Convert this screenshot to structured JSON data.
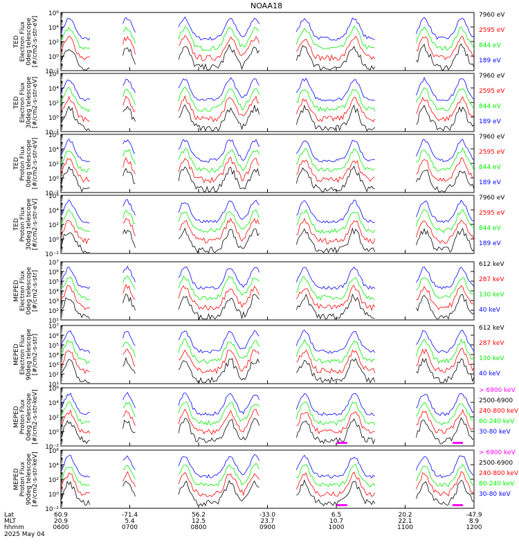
{
  "title": "NOAA18",
  "date_label": "2025 May 04",
  "colors": {
    "blue": "#0000ff",
    "red": "#ff0000",
    "green": "#00ee00",
    "black": "#000000",
    "magenta": "#ff00ff"
  },
  "footer": {
    "row_labels": [
      "Lat",
      "MLT",
      "hhmm"
    ],
    "columns": [
      {
        "lat": "60.9",
        "mlt": "20.9",
        "hhmm": "0600"
      },
      {
        "lat": "-71.4",
        "mlt": "5.4",
        "hhmm": "0700"
      },
      {
        "lat": "56.2",
        "mlt": "12.5",
        "hhmm": "0800"
      },
      {
        "lat": "-33.0",
        "mlt": "23.7",
        "hhmm": "0900"
      },
      {
        "lat": "6.5",
        "mlt": "10.7",
        "hhmm": "1000"
      },
      {
        "lat": "20.2",
        "mlt": "22.1",
        "hhmm": "1100"
      },
      {
        "lat": "-47.9",
        "mlt": "8.9",
        "hhmm": "1200"
      }
    ]
  },
  "chart_data": [
    {
      "type": "line",
      "ylabel": [
        "TED",
        "Electron Flux",
        "0deg telescope",
        "[#/cm2-s-str-eV]"
      ],
      "ylog": true,
      "ylim_exp": [
        -2,
        6
      ],
      "ytick_exps": [
        -2,
        0,
        2,
        4,
        6
      ],
      "ytick_labels": [
        "10⁻²",
        "10⁰",
        "10²",
        "10⁴",
        "10⁶"
      ],
      "series": [
        {
          "name": "7960 eV",
          "color": "#000000"
        },
        {
          "name": "2595 eV",
          "color": "#ff0000"
        },
        {
          "name": "844 eV",
          "color": "#00ee00"
        },
        {
          "name": "189 eV",
          "color": "#0000ff"
        }
      ]
    },
    {
      "type": "line",
      "ylabel": [
        "TED",
        "Electron Flux",
        "30deg telescope",
        "[#/cm2-s-str-eV]"
      ],
      "ylog": true,
      "ylim_exp": [
        -2,
        6
      ],
      "ytick_exps": [
        -2,
        0,
        2,
        4,
        6
      ],
      "ytick_labels": [
        "10⁻²",
        "10⁰",
        "10²",
        "10⁴",
        "10⁶"
      ],
      "series": [
        {
          "name": "7960 eV",
          "color": "#000000"
        },
        {
          "name": "2595 eV",
          "color": "#ff0000"
        },
        {
          "name": "844 eV",
          "color": "#00ee00"
        },
        {
          "name": "189 eV",
          "color": "#0000ff"
        }
      ]
    },
    {
      "type": "line",
      "ylabel": [
        "TED",
        "Proton Flux",
        "0deg telescope",
        "[#/cm2-s-str-eV]"
      ],
      "ylog": true,
      "ylim_exp": [
        -2,
        6
      ],
      "ytick_exps": [
        -2,
        0,
        2,
        4,
        6
      ],
      "ytick_labels": [
        "10⁻²",
        "10⁰",
        "10²",
        "10⁴",
        "10⁶"
      ],
      "series": [
        {
          "name": "7960 eV",
          "color": "#000000"
        },
        {
          "name": "2595 eV",
          "color": "#ff0000"
        },
        {
          "name": "844 eV",
          "color": "#00ee00"
        },
        {
          "name": "189 eV",
          "color": "#0000ff"
        }
      ]
    },
    {
      "type": "line",
      "ylabel": [
        "TED",
        "Proton Flux",
        "30deg telescope",
        "[#/cm2-s-str-eV]"
      ],
      "ylog": true,
      "ylim_exp": [
        -2,
        6
      ],
      "ytick_exps": [
        -2,
        0,
        2,
        4,
        6
      ],
      "ytick_labels": [
        "10⁻²",
        "10⁰",
        "10²",
        "10⁴",
        "10⁶"
      ],
      "series": [
        {
          "name": "7960 eV",
          "color": "#000000"
        },
        {
          "name": "2595 eV",
          "color": "#ff0000"
        },
        {
          "name": "844 eV",
          "color": "#00ee00"
        },
        {
          "name": "189 eV",
          "color": "#0000ff"
        }
      ]
    },
    {
      "type": "line",
      "ylabel": [
        "MEPED",
        "Electron Flux",
        "0deg telescope",
        "[#/cm2-s-str]"
      ],
      "ylog": true,
      "ylim_exp": [
        1,
        7
      ],
      "ytick_exps": [
        1,
        2,
        3,
        4,
        5,
        6,
        7
      ],
      "ytick_labels": [
        "10¹",
        "10²",
        "10³",
        "10⁴",
        "10⁵",
        "10⁶",
        "10⁷"
      ],
      "series": [
        {
          "name": "612 keV",
          "color": "#000000"
        },
        {
          "name": "287 keV",
          "color": "#ff0000"
        },
        {
          "name": "130 keV",
          "color": "#00ee00"
        },
        {
          "name": "40 keV",
          "color": "#0000ff"
        }
      ]
    },
    {
      "type": "line",
      "ylabel": [
        "MEPED",
        "Electron Flux",
        "90deg telescope",
        "[#/cm2-s-str]"
      ],
      "ylog": true,
      "ylim_exp": [
        1,
        7
      ],
      "ytick_exps": [
        1,
        2,
        3,
        4,
        5,
        6,
        7
      ],
      "ytick_labels": [
        "10¹",
        "10²",
        "10³",
        "10⁴",
        "10⁵",
        "10⁶",
        "10⁷"
      ],
      "series": [
        {
          "name": "612 keV",
          "color": "#000000"
        },
        {
          "name": "287 keV",
          "color": "#ff0000"
        },
        {
          "name": "130 keV",
          "color": "#00ee00"
        },
        {
          "name": "40 keV",
          "color": "#0000ff"
        }
      ]
    },
    {
      "type": "line",
      "ylabel": [
        "MEPED",
        "Proton Flux",
        "0deg telescope",
        "[#/cm2-s-str-keV]"
      ],
      "ylog": true,
      "ylim_exp": [
        -2,
        6
      ],
      "ytick_exps": [
        -2,
        0,
        2,
        4,
        6
      ],
      "ytick_labels": [
        "10⁻²",
        "10⁰",
        "10²",
        "10⁴",
        "10⁶"
      ],
      "series": [
        {
          "name": "> 6900 keV",
          "color": "#ff00ff"
        },
        {
          "name": "2500-6900",
          "color": "#000000"
        },
        {
          "name": "240-800 keV",
          "color": "#ff0000"
        },
        {
          "name": "80-240 keV",
          "color": "#00ee00"
        },
        {
          "name": "30-80 keV",
          "color": "#0000ff"
        }
      ]
    },
    {
      "type": "line",
      "ylabel": [
        "MEPED",
        "Proton Flux",
        "90deg telescope",
        "[#/cm2-s-str-keV]"
      ],
      "ylog": true,
      "ylim_exp": [
        -2,
        6
      ],
      "ytick_exps": [
        -2,
        0,
        2,
        4,
        6
      ],
      "ytick_labels": [
        "10⁻²",
        "10⁰",
        "10²",
        "10⁴",
        "10⁶"
      ],
      "series": [
        {
          "name": "> 6900 keV",
          "color": "#ff00ff"
        },
        {
          "name": "2500-6900",
          "color": "#000000"
        },
        {
          "name": "240-800 keV",
          "color": "#ff0000"
        },
        {
          "name": "80-240 keV",
          "color": "#00ee00"
        },
        {
          "name": "30-80 keV",
          "color": "#0000ff"
        }
      ]
    }
  ]
}
